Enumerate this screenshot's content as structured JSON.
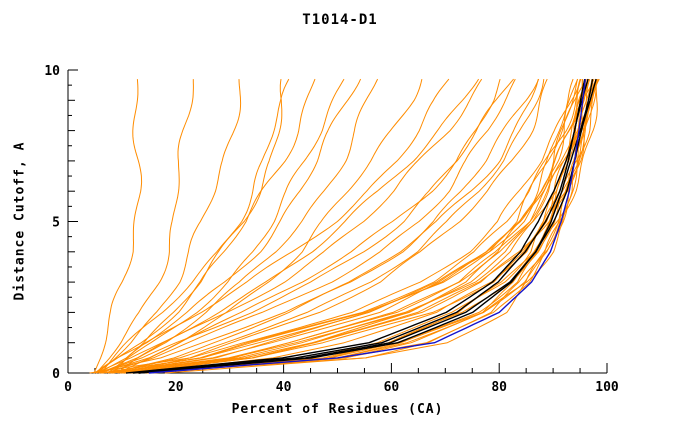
{
  "chart_data": {
    "type": "line",
    "title": "T1014-D1",
    "xlabel": "Percent of Residues (CA)",
    "ylabel": "Distance Cutoff, A",
    "xlim": [
      0,
      100
    ],
    "ylim": [
      0,
      10
    ],
    "x_ticks": [
      0,
      20,
      40,
      60,
      80,
      100
    ],
    "y_ticks": [
      0,
      5,
      10
    ],
    "x_minor_step": 5,
    "y_minor_step": 0.5,
    "grid": false,
    "legend": "none",
    "colors": {
      "orange": "#ff8c00",
      "black": "#000000",
      "blue": "#1414cc"
    },
    "cutoffs": [
      0,
      0.5,
      1,
      2,
      3,
      4,
      5,
      6,
      7,
      8,
      9,
      10
    ],
    "series": [
      {
        "color": "orange",
        "x_at_cutoff": [
          8,
          29,
          40,
          60,
          72,
          80,
          85,
          88,
          90.5,
          92.5,
          94,
          95.5
        ]
      },
      {
        "color": "orange",
        "x_at_cutoff": [
          10,
          33,
          45,
          64,
          75,
          82,
          86.5,
          89.5,
          92,
          94,
          95.5,
          97
        ]
      },
      {
        "color": "orange",
        "x_at_cutoff": [
          6,
          25,
          35,
          56,
          69,
          77.5,
          83,
          86.5,
          89.5,
          91.5,
          93.5,
          95
        ]
      },
      {
        "color": "orange",
        "x_at_cutoff": [
          12,
          35,
          48,
          67,
          78,
          84.5,
          88.5,
          91,
          93,
          95,
          96.5,
          98
        ]
      },
      {
        "color": "orange",
        "x_at_cutoff": [
          9,
          30,
          42,
          62,
          74,
          81,
          86,
          89,
          91.5,
          93.5,
          95,
          96.5
        ]
      },
      {
        "color": "orange",
        "x_at_cutoff": [
          7,
          27,
          38,
          58,
          70,
          78.5,
          84,
          87.5,
          90,
          92,
          94,
          95.5
        ]
      },
      {
        "color": "orange",
        "x_at_cutoff": [
          11,
          34,
          46,
          65,
          76.5,
          83,
          87.5,
          90.5,
          92.5,
          94.5,
          96,
          97.5
        ]
      },
      {
        "color": "orange",
        "x_at_cutoff": [
          5,
          23,
          32,
          52,
          65,
          74,
          80.5,
          84.5,
          88,
          90.5,
          92.5,
          94.5
        ]
      },
      {
        "color": "orange",
        "x_at_cutoff": [
          13,
          37,
          50,
          68.5,
          79,
          85.5,
          89.5,
          92,
          94,
          95.5,
          97,
          98.5
        ]
      },
      {
        "color": "orange",
        "x_at_cutoff": [
          8,
          27,
          37,
          57,
          70,
          78,
          83.5,
          87,
          90,
          92,
          94,
          96
        ]
      },
      {
        "color": "orange",
        "x_at_cutoff": [
          10,
          32,
          44,
          63,
          74.5,
          81.5,
          86,
          89,
          91.5,
          93.5,
          95.5,
          97
        ]
      },
      {
        "color": "orange",
        "x_at_cutoff": [
          6,
          24,
          33,
          54,
          67,
          76,
          82,
          86,
          89,
          91.5,
          93.5,
          95.5
        ]
      },
      {
        "color": "orange",
        "x_at_cutoff": [
          9,
          30,
          41,
          61,
          73,
          80.5,
          85.5,
          88.5,
          91,
          93,
          95,
          96.5
        ]
      },
      {
        "color": "orange",
        "x_at_cutoff": [
          12,
          35,
          47,
          66,
          77,
          83.5,
          88,
          90.5,
          93,
          94.5,
          96,
          97.5
        ]
      },
      {
        "color": "orange",
        "x_at_cutoff": [
          7,
          26,
          36,
          55,
          68,
          77,
          83,
          86.5,
          89.5,
          92,
          94,
          95.5
        ]
      },
      {
        "color": "orange",
        "x_at_cutoff": [
          15,
          50,
          62,
          76,
          83,
          87.5,
          90.5,
          92.5,
          94,
          95.5,
          96.5,
          97.5
        ]
      },
      {
        "color": "orange",
        "x_at_cutoff": [
          14,
          47,
          59,
          73,
          81.5,
          86.5,
          89.5,
          92,
          93.5,
          95,
          96.5,
          98
        ]
      },
      {
        "color": "orange",
        "x_at_cutoff": [
          16,
          52,
          64,
          78,
          85,
          89,
          91.5,
          93.2,
          94.8,
          96,
          97,
          98.5
        ]
      },
      {
        "color": "orange",
        "x_at_cutoff": [
          13,
          45,
          57,
          71,
          80,
          85.5,
          89,
          91.5,
          93.5,
          95,
          96,
          97
        ]
      },
      {
        "color": "orange",
        "x_at_cutoff": [
          17,
          54,
          66,
          79,
          85.5,
          89.5,
          92,
          93.8,
          95.2,
          96.5,
          97.5,
          99
        ]
      },
      {
        "color": "orange",
        "x_at_cutoff": [
          14,
          48,
          60,
          74,
          82.5,
          87,
          90,
          92.5,
          94,
          95.5,
          97,
          98.5
        ]
      },
      {
        "color": "orange",
        "x_at_cutoff": [
          15,
          51,
          63,
          77,
          84,
          88.5,
          91,
          93.2,
          94.8,
          96,
          97.5,
          99
        ]
      },
      {
        "color": "orange",
        "x_at_cutoff": [
          16,
          49,
          61,
          75,
          83,
          87.5,
          90.5,
          92.8,
          94.5,
          96,
          97,
          98
        ]
      },
      {
        "color": "orange",
        "x_at_cutoff": [
          12,
          55,
          70,
          81,
          86,
          89,
          91,
          92.5,
          94,
          95,
          96,
          97
        ]
      },
      {
        "color": "orange",
        "x_at_cutoff": [
          11,
          52,
          67,
          79,
          84.5,
          88,
          90.5,
          92,
          93.5,
          94.8,
          95.8,
          96.8
        ]
      },
      {
        "color": "orange",
        "x_at_cutoff": [
          6,
          18,
          25,
          40,
          52,
          61,
          68,
          73.5,
          78,
          81.5,
          84.5,
          87
        ]
      },
      {
        "color": "orange",
        "x_at_cutoff": [
          8,
          20,
          28,
          44,
          56,
          65,
          71.5,
          76.5,
          80.5,
          83.5,
          86,
          88.5
        ]
      },
      {
        "color": "orange",
        "x_at_cutoff": [
          5,
          14,
          20,
          33,
          44,
          53,
          60.5,
          66.5,
          71.5,
          75.5,
          79,
          82
        ]
      },
      {
        "color": "orange",
        "x_at_cutoff": [
          7,
          16,
          23,
          37,
          48.5,
          57.5,
          64.5,
          70,
          74.5,
          78.5,
          81.5,
          84.5
        ]
      },
      {
        "color": "orange",
        "x_at_cutoff": [
          6,
          13,
          18,
          29,
          39,
          47.5,
          55,
          61,
          66,
          70.5,
          74,
          77.5
        ]
      },
      {
        "color": "orange",
        "x_at_cutoff": [
          9,
          22,
          30,
          46,
          58,
          66.5,
          73,
          78,
          82,
          85,
          87.5,
          90
        ]
      },
      {
        "color": "orange",
        "x_at_cutoff": [
          5,
          11,
          15,
          25,
          34,
          42,
          49,
          55,
          60.5,
          65,
          69,
          72.5
        ]
      },
      {
        "color": "orange",
        "x_at_cutoff": [
          7,
          15,
          21,
          34,
          45,
          54,
          61.5,
          67.5,
          72.5,
          76.5,
          80,
          83
        ]
      },
      {
        "color": "orange",
        "x_at_cutoff": [
          6,
          12,
          17,
          27,
          36.5,
          45,
          52,
          58.5,
          64,
          68.5,
          72.5,
          76
        ]
      },
      {
        "color": "orange",
        "x_at_cutoff": [
          8,
          19,
          26,
          41,
          53,
          62,
          69,
          74.5,
          79,
          82.5,
          85.5,
          88
        ]
      },
      {
        "color": "orange",
        "x_at_cutoff": [
          5,
          6,
          7,
          9,
          10.5,
          11.5,
          12,
          12.5,
          12.8,
          13,
          13.2,
          13.4
        ]
      },
      {
        "color": "orange",
        "x_at_cutoff": [
          6,
          8,
          10,
          13.5,
          16,
          18,
          19.5,
          20.5,
          21.5,
          22,
          22.5,
          23
        ]
      },
      {
        "color": "orange",
        "x_at_cutoff": [
          5,
          8,
          11,
          16,
          20,
          23,
          25.5,
          27.5,
          29,
          30,
          31,
          32
        ]
      },
      {
        "color": "orange",
        "x_at_cutoff": [
          7,
          10,
          14,
          20,
          25,
          29,
          32.5,
          35,
          37,
          38.5,
          40,
          41
        ]
      },
      {
        "color": "orange",
        "x_at_cutoff": [
          6,
          9,
          12,
          18,
          23,
          27.5,
          31,
          34,
          36.5,
          38.5,
          40.5,
          42
        ]
      },
      {
        "color": "orange",
        "x_at_cutoff": [
          8,
          12,
          16,
          23,
          29,
          34,
          38,
          41.5,
          44.5,
          47,
          49,
          51
        ]
      },
      {
        "color": "orange",
        "x_at_cutoff": [
          5,
          9,
          13,
          19.5,
          25,
          29.5,
          33.5,
          36.5,
          39.5,
          42,
          44,
          46
        ]
      },
      {
        "color": "orange",
        "x_at_cutoff": [
          9,
          13,
          18,
          26,
          33,
          38.5,
          43,
          47,
          50.5,
          53.5,
          56,
          58.5
        ]
      },
      {
        "color": "orange",
        "x_at_cutoff": [
          6,
          10,
          15,
          22.5,
          29,
          34.5,
          39,
          43,
          46.5,
          49.5,
          52,
          54.5
        ]
      },
      {
        "color": "orange",
        "x_at_cutoff": [
          10,
          15,
          20,
          29,
          36.5,
          43,
          48,
          52.5,
          56.5,
          60,
          63,
          65.5
        ]
      },
      {
        "color": "black",
        "x_at_cutoff": [
          12,
          42,
          58,
          72,
          80,
          85,
          88.5,
          91,
          92.8,
          94.2,
          95.5,
          96.8
        ]
      },
      {
        "color": "black",
        "x_at_cutoff": [
          13,
          44,
          60,
          74,
          82,
          86.5,
          89.5,
          91.8,
          93.5,
          95,
          96.3,
          97.5
        ]
      },
      {
        "color": "black",
        "x_at_cutoff": [
          11,
          40,
          56,
          70,
          78.5,
          84,
          87.5,
          90.2,
          92.2,
          93.8,
          95.2,
          96.5
        ]
      },
      {
        "color": "black",
        "x_at_cutoff": [
          13,
          45,
          61,
          75,
          82.5,
          87,
          90,
          92.3,
          94,
          95.5,
          97,
          98.3
        ]
      },
      {
        "color": "blue",
        "x_at_cutoff": [
          15,
          50,
          68,
          80,
          86,
          89.5,
          91.5,
          93,
          94,
          94.8,
          95.5,
          96.2
        ]
      }
    ]
  }
}
